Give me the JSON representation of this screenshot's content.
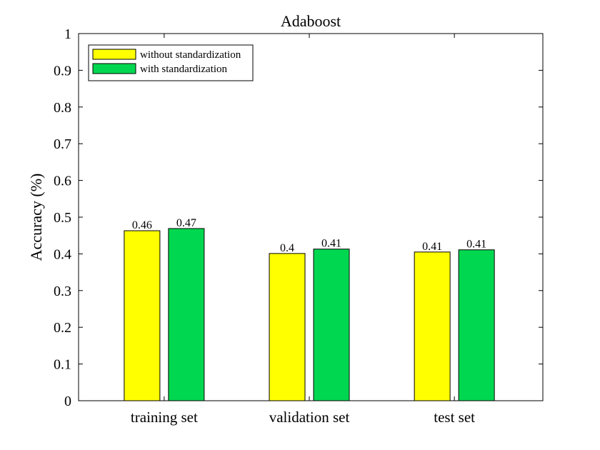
{
  "chart_data": {
    "type": "bar",
    "title": "Adaboost",
    "xlabel": "",
    "ylabel": "Accuracy (%)",
    "ylim": [
      0,
      1
    ],
    "yticks": [
      "0",
      "0.1",
      "0.2",
      "0.3",
      "0.4",
      "0.5",
      "0.6",
      "0.7",
      "0.8",
      "0.9",
      "1"
    ],
    "categories": [
      "training set",
      "validation set",
      "test set"
    ],
    "series": [
      {
        "name": "without standardization",
        "color": "#ffff00",
        "values": [
          0.463,
          0.401,
          0.405
        ],
        "labels": [
          "0.46",
          "0.4",
          "0.41"
        ]
      },
      {
        "name": "with standardization",
        "color": "#00d750",
        "values": [
          0.469,
          0.413,
          0.411
        ],
        "labels": [
          "0.47",
          "0.41",
          "0.41"
        ]
      }
    ],
    "legend_position": "top-left",
    "grid": false,
    "box": true
  }
}
